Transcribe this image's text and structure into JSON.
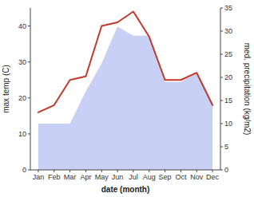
{
  "chart_data": {
    "type": "line",
    "categories": [
      "Jan",
      "Feb",
      "Mar",
      "Apr",
      "May",
      "Jun",
      "Jul",
      "Aug",
      "Sep",
      "Oct",
      "Nov",
      "Dec"
    ],
    "xlabel": "date (month)",
    "ylabel": "max temp (C)",
    "y2label": "med. precipitation (kg/m2)",
    "series": [
      {
        "type": "area",
        "axis": "y2",
        "color": "#c8d0f5",
        "values": [
          10,
          10,
          10,
          17,
          23,
          31,
          29,
          29,
          19,
          19,
          21,
          14
        ]
      },
      {
        "type": "line",
        "color": "#c0392b",
        "values": [
          16,
          18,
          25,
          26,
          40,
          41,
          44,
          37,
          25,
          25,
          27,
          18
        ]
      }
    ],
    "ylim": [
      0,
      45
    ],
    "yticks": [
      0,
      10,
      20,
      30,
      40
    ],
    "y2lim": [
      0,
      35
    ],
    "y2ticks": [
      0,
      5,
      10,
      15,
      20,
      25,
      30,
      35
    ],
    "grid": false
  }
}
